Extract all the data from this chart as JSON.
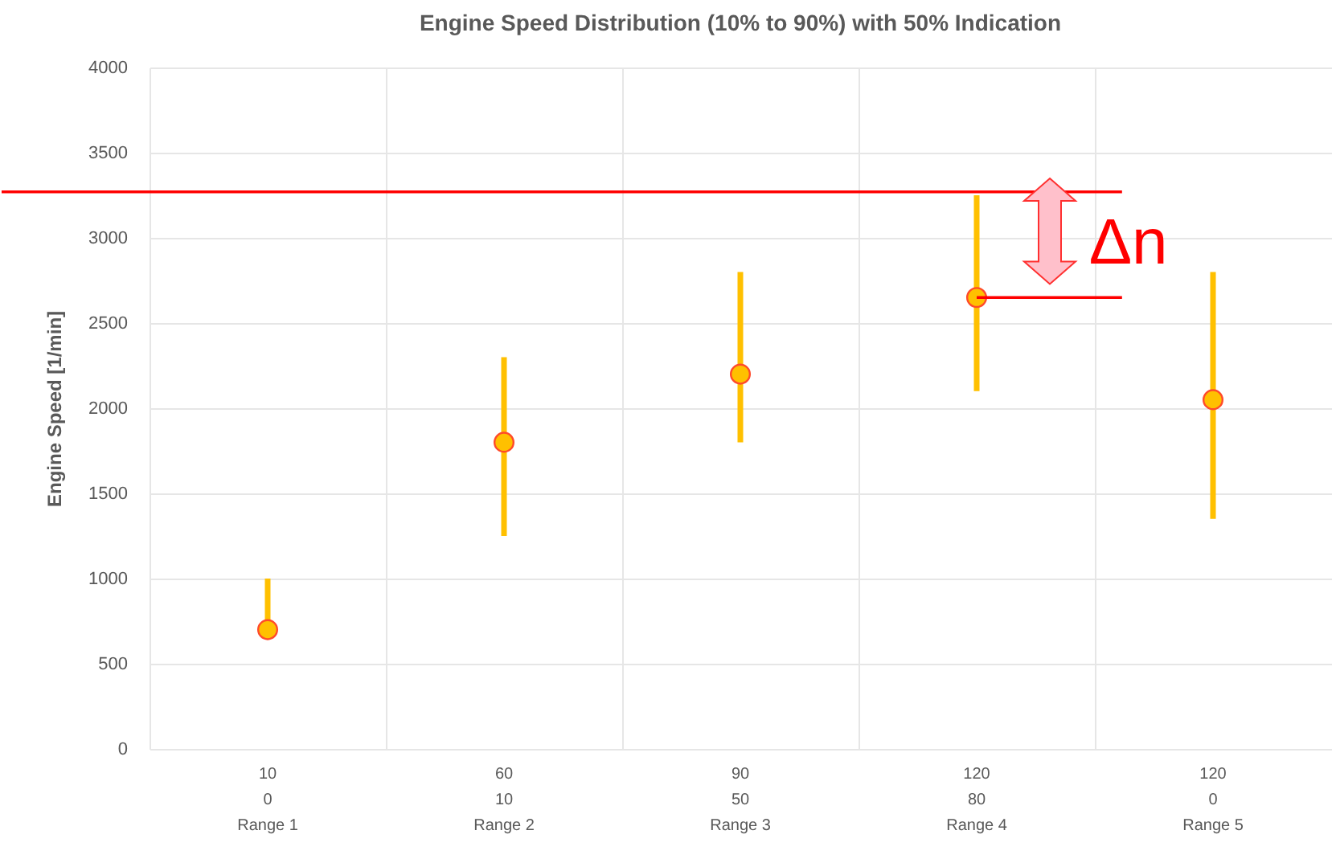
{
  "chart_data": {
    "type": "scatter",
    "title": "Engine Speed Distribution (10% to 90%) with 50% Indication",
    "ylabel": "Engine Speed [1/min]",
    "categories": [
      "10\n0\nRange 1",
      "60\n10\nRange 2",
      "90\n50\nRange 3",
      "120\n80\nRange 4",
      "120\n0\nRange 5"
    ],
    "series": [
      {
        "color": "#ffc000",
        "values": [
          700,
          1800,
          2200,
          2650,
          2050
        ],
        "errors": [
          [
            700,
            1000
          ],
          [
            1250,
            2300
          ],
          [
            1800,
            2800
          ],
          [
            2100,
            3250
          ],
          [
            1350,
            2800
          ]
        ]
      }
    ],
    "ylim": [
      0,
      4000
    ],
    "yticks": [
      0,
      500,
      1000,
      1500,
      2000,
      2500,
      3000,
      3500,
      4000
    ],
    "grid": true,
    "marker": "circle",
    "ref_lines": [
      {
        "axis": "y",
        "value": 3270,
        "color": "#ff0000"
      },
      {
        "axis": "y",
        "value": 2650,
        "color": "#ff0000"
      }
    ],
    "annotations": [
      "Δn"
    ]
  }
}
